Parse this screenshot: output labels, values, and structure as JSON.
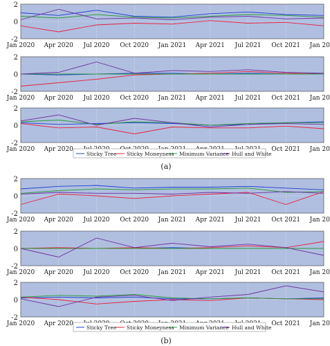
{
  "x_ticks": [
    "Jan 2020",
    "Apr 2020",
    "Jul 2020",
    "Oct 2020",
    "Jan 2021",
    "Apr 2021",
    "Jul 2021",
    "Oct 2021",
    "Jan 2022"
  ],
  "y_ticks": [
    "2",
    "0",
    "-2"
  ],
  "panel_labels": [
    "(a)",
    "(b)"
  ],
  "colors": {
    "panel_bg": "#b0bfe0",
    "grid": "#ffffff",
    "Sticky Tree": "#1f3fd0",
    "Sticky Moneyness": "#e8203a",
    "Minimum Variance": "#2a9a3a",
    "Hull and White": "#7030a0"
  },
  "chart_data": [
    {
      "type": "line",
      "panel": "(a)",
      "subplots": 3,
      "x": [
        "2020-01-01",
        "2020-04-01",
        "2020-07-01",
        "2020-10-01",
        "2021-01-01",
        "2021-04-01",
        "2021-07-01",
        "2021-10-01",
        "2022-01-01"
      ],
      "ylim": [
        -2,
        2
      ],
      "legend": {
        "placement": "below",
        "entries": [
          "Sticky Tree",
          "Sticky Moneyness",
          "Minimum Variance",
          "Hull and White"
        ]
      },
      "series_subplot_1": [
        {
          "name": "Sticky Tree",
          "values": [
            1.0,
            0.7,
            1.3,
            0.6,
            0.5,
            0.9,
            1.1,
            0.8,
            0.7
          ]
        },
        {
          "name": "Sticky Moneyness",
          "values": [
            -0.5,
            -1.2,
            -0.4,
            -0.2,
            -0.3,
            0.1,
            -0.2,
            -0.1,
            -0.5
          ]
        },
        {
          "name": "Minimum Variance",
          "values": [
            0.6,
            0.4,
            0.8,
            0.5,
            0.4,
            0.6,
            0.8,
            0.7,
            0.5
          ]
        },
        {
          "name": "Hull and White",
          "values": [
            0.2,
            1.4,
            0.3,
            0.4,
            0.2,
            0.5,
            0.6,
            0.3,
            0.4
          ]
        }
      ],
      "series_subplot_2": [
        {
          "name": "Sticky Tree",
          "values": [
            0.0,
            -0.1,
            0.0,
            0.1,
            0.1,
            0.0,
            0.1,
            0.0,
            0.1
          ]
        },
        {
          "name": "Sticky Moneyness",
          "values": [
            -1.4,
            -1.0,
            -0.6,
            -0.1,
            0.0,
            0.1,
            0.3,
            0.1,
            0.0
          ]
        },
        {
          "name": "Minimum Variance",
          "values": [
            0.0,
            0.0,
            0.0,
            0.0,
            0.0,
            0.0,
            0.0,
            0.0,
            0.0
          ]
        },
        {
          "name": "Hull and White",
          "values": [
            0.0,
            0.2,
            1.4,
            0.1,
            0.4,
            0.3,
            0.5,
            0.2,
            0.1
          ]
        }
      ],
      "series_subplot_3": [
        {
          "name": "Sticky Tree",
          "values": [
            0.3,
            0.1,
            0.2,
            0.3,
            0.2,
            0.0,
            0.1,
            0.3,
            0.4
          ]
        },
        {
          "name": "Sticky Moneyness",
          "values": [
            0.2,
            -0.3,
            -0.2,
            -1.0,
            -0.2,
            -0.3,
            -0.3,
            -0.1,
            -0.4
          ]
        },
        {
          "name": "Minimum Variance",
          "values": [
            0.4,
            0.6,
            0.1,
            0.4,
            0.3,
            0.0,
            0.2,
            0.3,
            0.3
          ]
        },
        {
          "name": "Hull and White",
          "values": [
            0.5,
            1.2,
            0.0,
            0.8,
            0.3,
            -0.2,
            0.1,
            0.2,
            0.1
          ]
        }
      ]
    },
    {
      "type": "line",
      "panel": "(b)",
      "subplots": 3,
      "x": [
        "2020-01-01",
        "2020-04-01",
        "2020-07-01",
        "2020-10-01",
        "2021-01-01",
        "2021-04-01",
        "2021-07-01",
        "2021-10-01",
        "2022-01-01"
      ],
      "ylim": [
        -2,
        2
      ],
      "legend": {
        "placement": "below",
        "entries": [
          "Sticky Tree",
          "Sticky Moneyness",
          "Minimum Variance",
          "Hull and White"
        ]
      },
      "series_subplot_1": [
        {
          "name": "Sticky Tree",
          "values": [
            0.8,
            1.1,
            1.2,
            0.9,
            1.0,
            1.0,
            1.1,
            0.9,
            0.7
          ]
        },
        {
          "name": "Sticky Moneyness",
          "values": [
            -1.0,
            0.2,
            0.0,
            -0.3,
            0.0,
            0.2,
            0.4,
            -1.0,
            0.5
          ]
        },
        {
          "name": "Minimum Variance",
          "values": [
            0.3,
            0.6,
            0.8,
            0.7,
            0.8,
            0.8,
            0.9,
            0.4,
            0.5
          ]
        },
        {
          "name": "Hull and White",
          "values": [
            0.2,
            0.4,
            0.3,
            0.3,
            0.2,
            0.4,
            0.3,
            0.5,
            0.3
          ]
        }
      ],
      "series_subplot_2": [
        {
          "name": "Sticky Tree",
          "values": [
            0.0,
            0.0,
            0.0,
            0.0,
            0.1,
            0.0,
            0.0,
            0.0,
            0.0
          ]
        },
        {
          "name": "Sticky Moneyness",
          "values": [
            0.0,
            0.1,
            0.0,
            0.1,
            0.0,
            0.1,
            0.3,
            0.1,
            0.8
          ]
        },
        {
          "name": "Minimum Variance",
          "values": [
            0.0,
            0.0,
            0.0,
            0.0,
            0.0,
            0.0,
            0.0,
            0.0,
            0.0
          ]
        },
        {
          "name": "Hull and White",
          "values": [
            0.0,
            -1.0,
            1.2,
            0.1,
            0.6,
            0.2,
            0.5,
            0.1,
            -0.8
          ]
        }
      ],
      "series_subplot_3": [
        {
          "name": "Sticky Tree",
          "values": [
            0.2,
            0.3,
            0.2,
            0.3,
            0.1,
            0.1,
            0.2,
            0.1,
            0.2
          ]
        },
        {
          "name": "Sticky Moneyness",
          "values": [
            0.3,
            0.0,
            -0.5,
            -0.2,
            0.0,
            -0.1,
            0.2,
            0.1,
            0.0
          ]
        },
        {
          "name": "Minimum Variance",
          "values": [
            0.3,
            0.5,
            0.4,
            0.6,
            0.2,
            0.1,
            0.2,
            0.1,
            0.1
          ]
        },
        {
          "name": "Hull and White",
          "values": [
            0.1,
            -0.8,
            0.3,
            0.5,
            -0.1,
            0.3,
            0.6,
            1.6,
            0.9
          ]
        }
      ]
    }
  ]
}
